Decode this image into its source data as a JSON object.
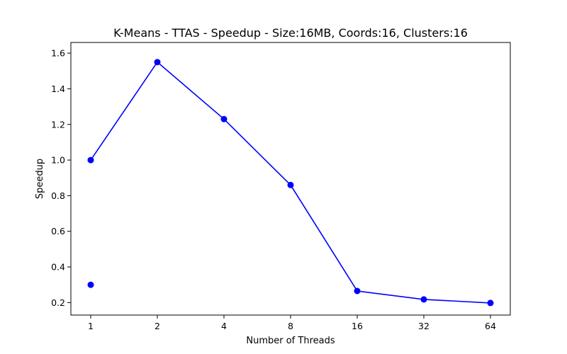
{
  "chart_data": {
    "type": "line",
    "title": "K-Means - TTAS - Speedup - Size:16MB, Coords:16, Clusters:16",
    "xlabel": "Number of Threads",
    "ylabel": "Speedup",
    "x_scale": "log2",
    "x_ticks": [
      1,
      2,
      4,
      8,
      16,
      32,
      64
    ],
    "x_tick_labels": [
      "1",
      "2",
      "4",
      "8",
      "16",
      "32",
      "64"
    ],
    "y_ticks": [
      0.2,
      0.4,
      0.6,
      0.8,
      1.0,
      1.2,
      1.4,
      1.6
    ],
    "y_tick_labels": [
      "0.2",
      "0.4",
      "0.6",
      "0.8",
      "1.0",
      "1.2",
      "1.4",
      "1.6"
    ],
    "ylim": [
      0.13,
      1.66
    ],
    "grid": false,
    "series": [
      {
        "color": "#0000ff",
        "marker": "circle",
        "line": true,
        "x": [
          1,
          2,
          4,
          8,
          16,
          32,
          64
        ],
        "y": [
          1.0,
          1.55,
          1.23,
          0.86,
          0.265,
          0.218,
          0.198
        ]
      },
      {
        "color": "#0000ff",
        "marker": "circle",
        "line": false,
        "x": [
          1
        ],
        "y": [
          0.3
        ]
      }
    ]
  }
}
